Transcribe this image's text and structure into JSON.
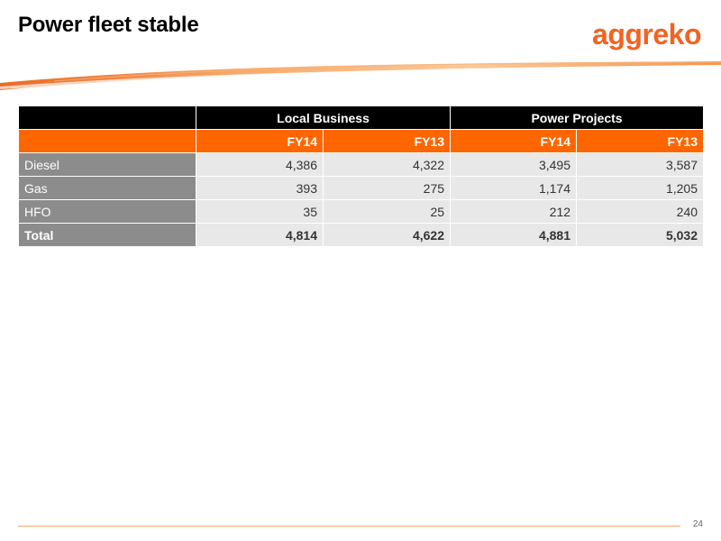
{
  "slide": {
    "title": "Power fleet stable",
    "logo_text": "aggreko",
    "page_number": "24",
    "accent_color": "#ff6600"
  },
  "table": {
    "group_headers": [
      "Local Business",
      "Power Projects"
    ],
    "year_headers": [
      "FY14",
      "FY13",
      "FY14",
      "FY13"
    ],
    "rows": [
      {
        "label": "Diesel",
        "values": [
          "4,386",
          "4,322",
          "3,495",
          "3,587"
        ]
      },
      {
        "label": "Gas",
        "values": [
          "393",
          "275",
          "1,174",
          "1,205"
        ]
      },
      {
        "label": "HFO",
        "values": [
          "35",
          "25",
          "212",
          "240"
        ]
      },
      {
        "label": "Total",
        "values": [
          "4,814",
          "4,622",
          "4,881",
          "5,032"
        ]
      }
    ]
  }
}
